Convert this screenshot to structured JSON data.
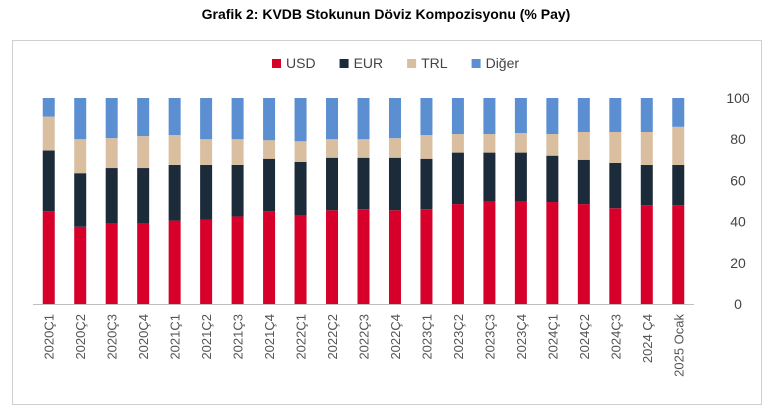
{
  "title": "Grafik 2: KVDB Stokunun Döviz Kompozisyonu (% Pay)",
  "colors": {
    "USD": "#d6002a",
    "EUR": "#1c2b3a",
    "TRL": "#d9bf9f",
    "Diğer": "#5b8fd1"
  },
  "chart_data": {
    "type": "bar",
    "stacked": true,
    "title": "Grafik 2: KVDB Stokunun Döviz Kompozisyonu (% Pay)",
    "legend_position": "top-center",
    "ylim": [
      0,
      100
    ],
    "yticks": [
      0,
      20,
      40,
      60,
      80,
      100
    ],
    "y_axis_side": "right",
    "grid": false,
    "categories": [
      "2020Ç1",
      "2020Ç2",
      "2020Ç3",
      "2020Ç4",
      "2021Ç1",
      "2021Ç2",
      "2021Ç3",
      "2021Ç4",
      "2022Ç1",
      "2022Ç2",
      "2022Ç3",
      "2022Ç4",
      "2023Ç1",
      "2023Ç2",
      "2023Ç3",
      "2023Ç4",
      "2024Ç1",
      "2024Ç2",
      "2024Ç3",
      "2024 Ç4",
      "2025 Ocak"
    ],
    "series": [
      {
        "name": "USD",
        "values": [
          45,
          37.5,
          39,
          39,
          40.5,
          41,
          42.5,
          45,
          43,
          45.5,
          46,
          45.5,
          46,
          48.5,
          50,
          50,
          49.5,
          48.5,
          46.5,
          48,
          48
        ]
      },
      {
        "name": "EUR",
        "values": [
          29.5,
          26,
          27,
          27,
          27,
          26.5,
          25,
          25.5,
          26,
          25.5,
          25,
          25.5,
          24.5,
          25,
          23.5,
          23.5,
          22.5,
          21.5,
          22,
          19.5,
          19.5
        ]
      },
      {
        "name": "TRL",
        "values": [
          16.5,
          16.5,
          14.5,
          15.5,
          14.5,
          12.5,
          12.5,
          9,
          10,
          9,
          9,
          9.5,
          11.5,
          9,
          9,
          9.5,
          10.5,
          13.5,
          15,
          16,
          18.5
        ]
      },
      {
        "name": "Diğer",
        "values": [
          9,
          20,
          19.5,
          18.5,
          18,
          20,
          20,
          20.5,
          21,
          20,
          20,
          19.5,
          18,
          17.5,
          17.5,
          17,
          17.5,
          16.5,
          16.5,
          16.5,
          14
        ]
      }
    ]
  }
}
